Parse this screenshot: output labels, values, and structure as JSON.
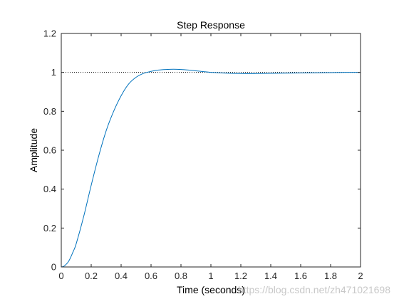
{
  "chart_data": {
    "type": "line",
    "title": "Step Response",
    "xlabel": "Time (seconds)",
    "ylabel": "Amplitude",
    "xlim": [
      0,
      2
    ],
    "ylim": [
      0,
      1.2
    ],
    "xticks": [
      0,
      0.2,
      0.4,
      0.6,
      0.8,
      1,
      1.2,
      1.4,
      1.6,
      1.8,
      2
    ],
    "xtick_labels": [
      "0",
      "0.2",
      "0.4",
      "0.6",
      "0.8",
      "1",
      "1.2",
      "1.4",
      "1.6",
      "1.8",
      "2"
    ],
    "yticks": [
      0,
      0.2,
      0.4,
      0.6,
      0.8,
      1,
      1.2
    ],
    "ytick_labels": [
      "0",
      "0.2",
      "0.4",
      "0.6",
      "0.8",
      "1",
      "1.2"
    ],
    "grid": false,
    "reference_line": {
      "y": 1,
      "style": "dotted",
      "color": "#000000"
    },
    "series": [
      {
        "color": "#0072bd",
        "x": [
          0,
          0.02,
          0.05,
          0.08,
          0.1,
          0.15,
          0.2,
          0.25,
          0.3,
          0.35,
          0.4,
          0.45,
          0.5,
          0.55,
          0.6,
          0.65,
          0.7,
          0.75,
          0.8,
          0.85,
          0.9,
          0.95,
          1.0,
          1.1,
          1.2,
          1.3,
          1.4,
          1.5,
          1.6,
          1.7,
          1.8,
          1.9,
          2.0
        ],
        "y": [
          0,
          0.005,
          0.03,
          0.08,
          0.12,
          0.26,
          0.42,
          0.57,
          0.7,
          0.8,
          0.88,
          0.94,
          0.975,
          0.995,
          1.005,
          1.012,
          1.015,
          1.016,
          1.015,
          1.012,
          1.008,
          1.004,
          1.0,
          0.996,
          0.994,
          0.994,
          0.995,
          0.996,
          0.997,
          0.998,
          0.999,
          1.0,
          1.0
        ]
      }
    ]
  },
  "watermark": "https://blog.csdn.net/zh471021698"
}
